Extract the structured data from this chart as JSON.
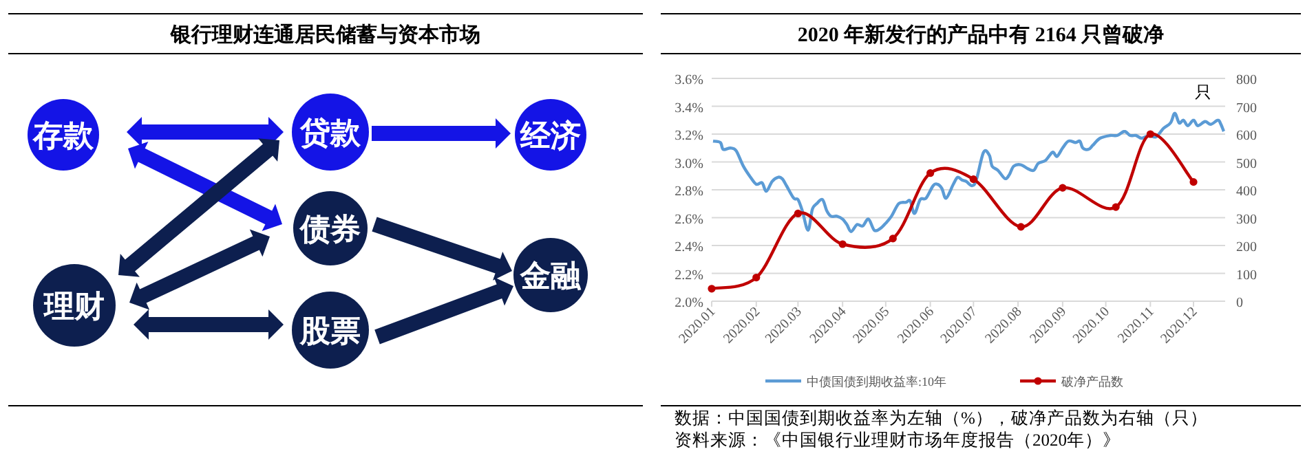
{
  "chart_data": [
    {
      "type": "other",
      "title": "银行理财连通居民储蓄与资本市场",
      "annotations": [
        "存款",
        "贷款",
        "经济",
        "债券",
        "理财",
        "股票",
        "金融"
      ]
    },
    {
      "type": "line",
      "title": "2020 年新发行的产品中有 2164 只曾破净",
      "y2label": "只",
      "xlim": [
        "2020-01-01",
        "2020-12-23"
      ],
      "xticks": [
        {
          "value": "2020-01-01",
          "label": "2020.01"
        },
        {
          "value": "2020-02-01",
          "label": "2020.02"
        },
        {
          "value": "2020-03-01",
          "label": "2020.03"
        },
        {
          "value": "2020-04-01",
          "label": "2020.04"
        },
        {
          "value": "2020-05-01",
          "label": "2020.05"
        },
        {
          "value": "2020-06-01",
          "label": "2020.06"
        },
        {
          "value": "2020-07-01",
          "label": "2020.07"
        },
        {
          "value": "2020-08-01",
          "label": "2020.08"
        },
        {
          "value": "2020-09-01",
          "label": "2020.09"
        },
        {
          "value": "2020-10-01",
          "label": "2020.10"
        },
        {
          "value": "2020-11-01",
          "label": "2020.11"
        },
        {
          "value": "2020-12-01",
          "label": "2020.12"
        }
      ],
      "ylim": [
        2.0,
        3.6
      ],
      "yticks": [
        {
          "value": 2.0,
          "label": "2.0%"
        },
        {
          "value": 2.2,
          "label": "2.2%"
        },
        {
          "value": 2.4,
          "label": "2.4%"
        },
        {
          "value": 2.6,
          "label": "2.6%"
        },
        {
          "value": 2.8,
          "label": "2.8%"
        },
        {
          "value": 3.0,
          "label": "3.0%"
        },
        {
          "value": 3.2,
          "label": "3.2%"
        },
        {
          "value": 3.4,
          "label": "3.4%"
        },
        {
          "value": 3.6,
          "label": "3.6%"
        }
      ],
      "y2lim": [
        0,
        800
      ],
      "y2ticks": [
        0,
        100,
        200,
        300,
        400,
        500,
        600,
        700,
        800
      ],
      "grid": "y",
      "legend": "bottom",
      "series": [
        {
          "name": "中债国债到期收益率:10年",
          "color": "#5b9bd5",
          "marker": "none",
          "x": [
            "2020-01-02",
            "2020-01-07",
            "2020-01-09",
            "2020-01-14",
            "2020-01-18",
            "2020-01-23",
            "2020-01-28",
            "2020-02-01",
            "2020-02-05",
            "2020-02-08",
            "2020-02-12",
            "2020-02-16",
            "2020-02-19",
            "2020-02-22",
            "2020-02-27",
            "2020-03-01",
            "2020-03-04",
            "2020-03-08",
            "2020-03-11",
            "2020-03-14",
            "2020-03-18",
            "2020-03-21",
            "2020-03-24",
            "2020-03-28",
            "2020-04-01",
            "2020-04-04",
            "2020-04-07",
            "2020-04-11",
            "2020-04-15",
            "2020-04-19",
            "2020-04-23",
            "2020-04-27",
            "2020-05-01",
            "2020-05-05",
            "2020-05-10",
            "2020-05-15",
            "2020-05-18",
            "2020-05-21",
            "2020-05-25",
            "2020-05-29",
            "2020-06-03",
            "2020-06-06",
            "2020-06-09",
            "2020-06-12",
            "2020-06-17",
            "2020-06-20",
            "2020-06-23",
            "2020-06-26",
            "2020-06-30",
            "2020-07-03",
            "2020-07-08",
            "2020-07-12",
            "2020-07-14",
            "2020-07-18",
            "2020-07-23",
            "2020-07-26",
            "2020-07-29",
            "2020-08-03",
            "2020-08-08",
            "2020-08-12",
            "2020-08-15",
            "2020-08-20",
            "2020-08-25",
            "2020-08-28",
            "2020-09-01",
            "2020-09-05",
            "2020-09-10",
            "2020-09-13",
            "2020-09-15",
            "2020-09-19",
            "2020-09-22",
            "2020-09-27",
            "2020-10-04",
            "2020-10-09",
            "2020-10-14",
            "2020-10-18",
            "2020-10-22",
            "2020-10-26",
            "2020-10-31",
            "2020-11-05",
            "2020-11-10",
            "2020-11-15",
            "2020-11-18",
            "2020-11-21",
            "2020-11-24",
            "2020-11-27",
            "2020-12-01",
            "2020-12-04",
            "2020-12-09",
            "2020-12-13",
            "2020-12-18",
            "2020-12-20",
            "2020-12-22"
          ],
          "values": [
            3.15,
            3.14,
            3.09,
            3.1,
            3.08,
            2.97,
            2.89,
            2.84,
            2.85,
            2.79,
            2.86,
            2.89,
            2.88,
            2.83,
            2.74,
            2.73,
            2.65,
            2.51,
            2.66,
            2.7,
            2.73,
            2.65,
            2.61,
            2.61,
            2.59,
            2.55,
            2.5,
            2.55,
            2.54,
            2.59,
            2.51,
            2.52,
            2.56,
            2.61,
            2.7,
            2.71,
            2.72,
            2.63,
            2.73,
            2.74,
            2.83,
            2.84,
            2.81,
            2.74,
            2.84,
            2.89,
            2.87,
            2.86,
            2.83,
            2.87,
            3.07,
            3.05,
            2.97,
            2.94,
            2.88,
            2.91,
            2.97,
            2.98,
            2.95,
            2.94,
            2.99,
            3.01,
            3.07,
            3.04,
            3.1,
            3.15,
            3.14,
            3.15,
            3.1,
            3.09,
            3.12,
            3.17,
            3.19,
            3.19,
            3.22,
            3.19,
            3.19,
            3.17,
            3.19,
            3.18,
            3.24,
            3.28,
            3.35,
            3.28,
            3.3,
            3.26,
            3.3,
            3.26,
            3.29,
            3.27,
            3.3,
            3.27,
            3.22
          ]
        },
        {
          "name": "破净产品数",
          "color": "#c00000",
          "axis": "y2",
          "marker": "circle",
          "x": [
            "2020-01-01",
            "2020-02-01",
            "2020-03-01",
            "2020-04-01",
            "2020-05-06",
            "2020-06-01",
            "2020-07-01",
            "2020-08-03",
            "2020-09-01",
            "2020-10-08",
            "2020-11-01",
            "2020-12-01"
          ],
          "values": [
            45,
            85,
            315,
            205,
            225,
            460,
            438,
            267,
            407,
            338,
            600,
            428
          ]
        }
      ],
      "annotations": [
        "数据：中国国债到期收益率为左轴（%），破净产品数为右轴（只）",
        "资料来源：《中国银行业理财市场年度报告（2020年）》"
      ]
    }
  ]
}
